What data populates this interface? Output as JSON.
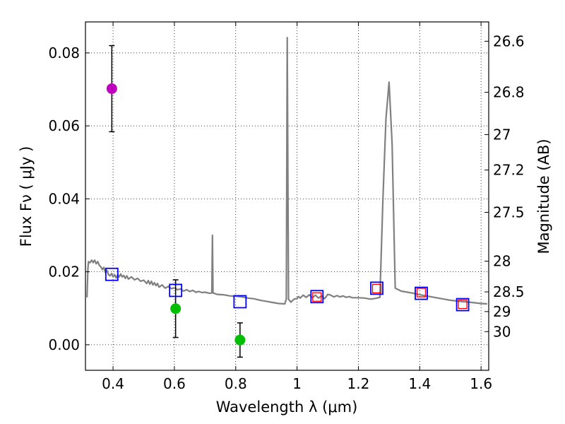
{
  "chart_data": {
    "type": "line",
    "x_label": "Wavelength  λ (μm)",
    "y_label_left": "Flux  Fν  ( μJy )",
    "y_label_right": "Magnitude (AB)",
    "xlim": [
      0.31,
      1.625
    ],
    "ylim": [
      -0.007,
      0.0885
    ],
    "grid": true,
    "x_ticks": [
      {
        "value": 0.4,
        "label": "0.4"
      },
      {
        "value": 0.6,
        "label": "0.6"
      },
      {
        "value": 0.8,
        "label": "0.8"
      },
      {
        "value": 1.0,
        "label": "1"
      },
      {
        "value": 1.2,
        "label": "1.2"
      },
      {
        "value": 1.4,
        "label": "1.4"
      },
      {
        "value": 1.6,
        "label": "1.6"
      }
    ],
    "y_ticks": [
      {
        "value": 0.0,
        "label": "0.00"
      },
      {
        "value": 0.02,
        "label": "0.02"
      },
      {
        "value": 0.04,
        "label": "0.04"
      },
      {
        "value": 0.06,
        "label": "0.06"
      },
      {
        "value": 0.08,
        "label": "0.08"
      }
    ],
    "mag_ticks": [
      {
        "label": "26.6",
        "flux": 0.0832
      },
      {
        "label": "26.8",
        "flux": 0.0692
      },
      {
        "label": "27",
        "flux": 0.0576
      },
      {
        "label": "27.2",
        "flux": 0.0479
      },
      {
        "label": "27.5",
        "flux": 0.0363
      },
      {
        "label": "28",
        "flux": 0.0229
      },
      {
        "label": "28.5",
        "flux": 0.0145
      },
      {
        "label": "29",
        "flux": 0.0091
      },
      {
        "label": "30",
        "flux": 0.0036
      }
    ],
    "series": [
      {
        "type": "line",
        "color": "#808080",
        "points": [
          [
            0.315,
            0.013
          ],
          [
            0.318,
            0.021
          ],
          [
            0.32,
            0.0228
          ],
          [
            0.325,
            0.0225
          ],
          [
            0.33,
            0.0232
          ],
          [
            0.335,
            0.0225
          ],
          [
            0.34,
            0.0232
          ],
          [
            0.345,
            0.0222
          ],
          [
            0.35,
            0.0228
          ],
          [
            0.355,
            0.0218
          ],
          [
            0.36,
            0.0214
          ],
          [
            0.365,
            0.0206
          ],
          [
            0.37,
            0.0212
          ],
          [
            0.375,
            0.0198
          ],
          [
            0.38,
            0.0204
          ],
          [
            0.385,
            0.0192
          ],
          [
            0.39,
            0.0189
          ],
          [
            0.395,
            0.0195
          ],
          [
            0.4,
            0.0186
          ],
          [
            0.405,
            0.0192
          ],
          [
            0.41,
            0.0183
          ],
          [
            0.415,
            0.0192
          ],
          [
            0.42,
            0.0186
          ],
          [
            0.425,
            0.0194
          ],
          [
            0.43,
            0.0186
          ],
          [
            0.435,
            0.019
          ],
          [
            0.44,
            0.0182
          ],
          [
            0.445,
            0.0189
          ],
          [
            0.45,
            0.018
          ],
          [
            0.46,
            0.0186
          ],
          [
            0.47,
            0.0178
          ],
          [
            0.48,
            0.0182
          ],
          [
            0.49,
            0.0174
          ],
          [
            0.5,
            0.0177
          ],
          [
            0.51,
            0.0168
          ],
          [
            0.515,
            0.0176
          ],
          [
            0.52,
            0.0166
          ],
          [
            0.525,
            0.0174
          ],
          [
            0.53,
            0.0164
          ],
          [
            0.535,
            0.017
          ],
          [
            0.54,
            0.0162
          ],
          [
            0.545,
            0.0168
          ],
          [
            0.55,
            0.0158
          ],
          [
            0.56,
            0.0164
          ],
          [
            0.57,
            0.0155
          ],
          [
            0.58,
            0.016
          ],
          [
            0.59,
            0.0154
          ],
          [
            0.6,
            0.0156
          ],
          [
            0.61,
            0.0151
          ],
          [
            0.62,
            0.0153
          ],
          [
            0.63,
            0.0147
          ],
          [
            0.64,
            0.0151
          ],
          [
            0.65,
            0.0146
          ],
          [
            0.66,
            0.0149
          ],
          [
            0.67,
            0.0144
          ],
          [
            0.68,
            0.0146
          ],
          [
            0.69,
            0.0143
          ],
          [
            0.7,
            0.0144
          ],
          [
            0.715,
            0.0141
          ],
          [
            0.722,
            0.0142
          ],
          [
            0.724,
            0.03
          ],
          [
            0.726,
            0.0142
          ],
          [
            0.74,
            0.0138
          ],
          [
            0.76,
            0.0137
          ],
          [
            0.78,
            0.0134
          ],
          [
            0.8,
            0.0133
          ],
          [
            0.82,
            0.0131
          ],
          [
            0.84,
            0.0128
          ],
          [
            0.86,
            0.0126
          ],
          [
            0.88,
            0.0122
          ],
          [
            0.9,
            0.0119
          ],
          [
            0.92,
            0.0116
          ],
          [
            0.94,
            0.0113
          ],
          [
            0.96,
            0.0112
          ],
          [
            0.965,
            0.0125
          ],
          [
            0.968,
            0.0842
          ],
          [
            0.972,
            0.0125
          ],
          [
            0.98,
            0.0117
          ],
          [
            0.99,
            0.0125
          ],
          [
            1.0,
            0.0127
          ],
          [
            1.005,
            0.0132
          ],
          [
            1.01,
            0.0128
          ],
          [
            1.02,
            0.0136
          ],
          [
            1.03,
            0.013
          ],
          [
            1.04,
            0.0137
          ],
          [
            1.05,
            0.0129
          ],
          [
            1.06,
            0.0136
          ],
          [
            1.07,
            0.0128
          ],
          [
            1.08,
            0.0134
          ],
          [
            1.09,
            0.0126
          ],
          [
            1.1,
            0.0138
          ],
          [
            1.11,
            0.0136
          ],
          [
            1.12,
            0.0131
          ],
          [
            1.13,
            0.0135
          ],
          [
            1.14,
            0.0131
          ],
          [
            1.15,
            0.0134
          ],
          [
            1.16,
            0.013
          ],
          [
            1.17,
            0.0132
          ],
          [
            1.18,
            0.0129
          ],
          [
            1.2,
            0.0129
          ],
          [
            1.22,
            0.0128
          ],
          [
            1.24,
            0.0125
          ],
          [
            1.255,
            0.0127
          ],
          [
            1.26,
            0.0128
          ],
          [
            1.27,
            0.013
          ],
          [
            1.28,
            0.04
          ],
          [
            1.29,
            0.062
          ],
          [
            1.3,
            0.072
          ],
          [
            1.31,
            0.055
          ],
          [
            1.32,
            0.0155
          ],
          [
            1.34,
            0.0147
          ],
          [
            1.36,
            0.0144
          ],
          [
            1.38,
            0.0141
          ],
          [
            1.4,
            0.0137
          ],
          [
            1.42,
            0.0134
          ],
          [
            1.44,
            0.0131
          ],
          [
            1.46,
            0.0128
          ],
          [
            1.48,
            0.0125
          ],
          [
            1.5,
            0.0122
          ],
          [
            1.52,
            0.012
          ],
          [
            1.54,
            0.0118
          ],
          [
            1.56,
            0.0117
          ],
          [
            1.58,
            0.0115
          ],
          [
            1.6,
            0.0113
          ],
          [
            1.62,
            0.0112
          ]
        ]
      },
      {
        "type": "scatter",
        "marker": "circle",
        "points": [
          {
            "x": 0.396,
            "y": 0.0702,
            "yerr": 0.0118,
            "color": "#bf00bf"
          },
          {
            "x": 0.604,
            "y": 0.0099,
            "yerr": 0.0079,
            "color": "#00bf00"
          },
          {
            "x": 0.814,
            "y": 0.0013,
            "yerr": 0.0047,
            "color": "#00bf00"
          }
        ]
      },
      {
        "type": "scatter",
        "marker": "square",
        "color": "#0000ff",
        "points": [
          [
            0.396,
            0.0193
          ],
          [
            0.604,
            0.0149
          ],
          [
            0.814,
            0.0118
          ],
          [
            1.065,
            0.0132
          ],
          [
            1.26,
            0.0155
          ],
          [
            1.405,
            0.0141
          ],
          [
            1.54,
            0.011
          ]
        ]
      },
      {
        "type": "scatter",
        "marker": "square",
        "color": "#ff0000",
        "points": [
          [
            1.065,
            0.0131
          ],
          [
            1.26,
            0.0154
          ],
          [
            1.405,
            0.0143
          ],
          [
            1.54,
            0.0111
          ]
        ]
      }
    ]
  }
}
